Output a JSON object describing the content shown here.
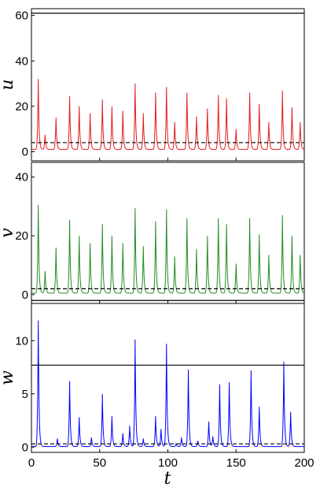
{
  "chart_data": {
    "type": "line",
    "xlabel": "t",
    "xlim": [
      0,
      200
    ],
    "xticks": [
      0,
      50,
      100,
      150,
      200
    ],
    "panels": [
      {
        "ylabel": "u",
        "ylim": [
          -4,
          63
        ],
        "yticks": [
          0,
          20,
          40,
          60
        ],
        "color": "#e31a1c",
        "baseline": 1,
        "solid_ref": 61,
        "dashed_ref": 4,
        "peaks": [
          [
            5,
            32
          ],
          [
            10,
            7.5
          ],
          [
            18,
            15
          ],
          [
            28,
            24.5
          ],
          [
            35,
            20
          ],
          [
            43,
            17
          ],
          [
            52,
            23
          ],
          [
            59,
            20
          ],
          [
            67,
            18
          ],
          [
            76,
            30
          ],
          [
            82,
            17
          ],
          [
            91,
            26
          ],
          [
            99,
            28.5
          ],
          [
            105,
            13
          ],
          [
            114,
            26
          ],
          [
            121,
            15.5
          ],
          [
            129,
            19
          ],
          [
            137,
            25
          ],
          [
            143,
            23.5
          ],
          [
            150,
            10
          ],
          [
            160,
            26
          ],
          [
            167,
            21
          ],
          [
            174,
            13
          ],
          [
            184,
            27
          ],
          [
            191,
            19.5
          ],
          [
            197,
            13
          ]
        ]
      },
      {
        "ylabel": "v",
        "ylim": [
          -3,
          45
        ],
        "yticks": [
          0,
          20,
          40
        ],
        "color": "#228b22",
        "baseline": 0.5,
        "solid_ref": -2,
        "dashed_ref": 2,
        "peaks": [
          [
            5,
            30.5
          ],
          [
            10,
            8
          ],
          [
            18,
            16
          ],
          [
            28,
            25.5
          ],
          [
            35,
            20
          ],
          [
            43,
            17.5
          ],
          [
            52,
            24
          ],
          [
            59,
            20
          ],
          [
            67,
            17.5
          ],
          [
            76,
            29.5
          ],
          [
            82,
            16.5
          ],
          [
            91,
            25
          ],
          [
            99,
            29
          ],
          [
            105,
            13
          ],
          [
            114,
            26
          ],
          [
            121,
            15.5
          ],
          [
            129,
            20
          ],
          [
            137,
            26
          ],
          [
            143,
            24
          ],
          [
            150,
            10.5
          ],
          [
            160,
            26
          ],
          [
            167,
            20.5
          ],
          [
            174,
            13.5
          ],
          [
            184,
            27
          ],
          [
            191,
            20
          ],
          [
            197,
            13.5
          ]
        ]
      },
      {
        "ylabel": "w",
        "ylim": [
          -0.5,
          13.5
        ],
        "yticks": [
          0,
          5,
          10
        ],
        "color": "#0000ff",
        "baseline": 0.05,
        "solid_ref": 7.7,
        "dashed_ref": 0.3,
        "peaks": [
          [
            5,
            11.9
          ],
          [
            19,
            0.8
          ],
          [
            28,
            6.2
          ],
          [
            35,
            2.8
          ],
          [
            44,
            0.9
          ],
          [
            52,
            5
          ],
          [
            59,
            2.9
          ],
          [
            67,
            1.3
          ],
          [
            72,
            2
          ],
          [
            76,
            10.1
          ],
          [
            82,
            0.8
          ],
          [
            91,
            2.9
          ],
          [
            95,
            1.7
          ],
          [
            99,
            9.7
          ],
          [
            106,
            0.3
          ],
          [
            110,
            0.9
          ],
          [
            115,
            7.3
          ],
          [
            122,
            0.6
          ],
          [
            130,
            2.4
          ],
          [
            133,
            1
          ],
          [
            138,
            5.9
          ],
          [
            145,
            6.1
          ],
          [
            161,
            7.2
          ],
          [
            167,
            3.8
          ],
          [
            185,
            8
          ],
          [
            190,
            3.3
          ]
        ]
      }
    ]
  }
}
